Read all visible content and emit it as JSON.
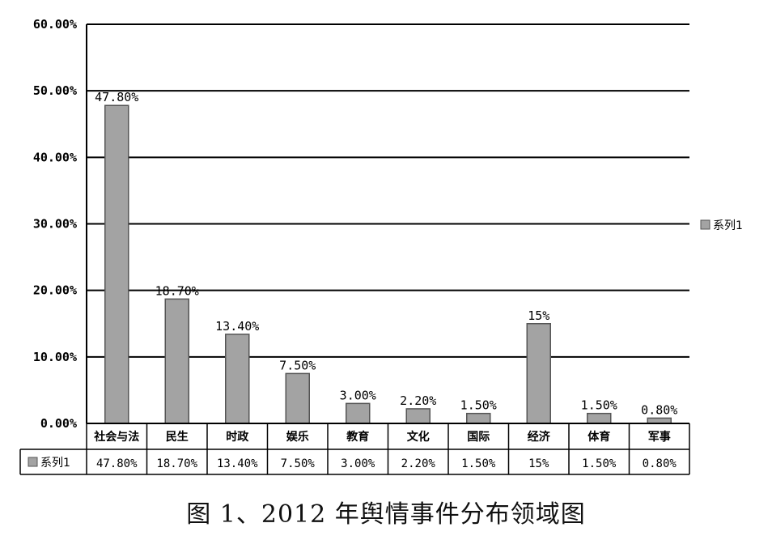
{
  "chart_data": {
    "type": "bar",
    "categories": [
      "社会与法",
      "民生",
      "时政",
      "娱乐",
      "教育",
      "文化",
      "国际",
      "经济",
      "体育",
      "军事"
    ],
    "series": [
      {
        "name": "系列1",
        "values": [
          47.8,
          18.7,
          13.4,
          7.5,
          3.0,
          2.2,
          1.5,
          15,
          1.5,
          0.8
        ]
      }
    ],
    "data_labels": [
      "47.80%",
      "18.70%",
      "13.40%",
      "7.50%",
      "3.00%",
      "2.20%",
      "1.50%",
      "15%",
      "1.50%",
      "0.80%"
    ],
    "table_values": [
      "47.80%",
      "18.70%",
      "13.40%",
      "7.50%",
      "3.00%",
      "2.20%",
      "1.50%",
      "15%",
      "1.50%",
      "0.80%"
    ],
    "y_ticks": [
      "0.00%",
      "10.00%",
      "20.00%",
      "30.00%",
      "40.00%",
      "50.00%",
      "60.00%"
    ],
    "ylim": [
      0,
      60
    ],
    "ylabel": "",
    "xlabel": "",
    "grid": true,
    "legend": {
      "position": "right",
      "label": "系列1"
    },
    "colors": {
      "bar": "#a3a3a3",
      "bar_edge": "#555555",
      "grid": "#000000"
    }
  },
  "caption": "图 1、2012 年舆情事件分布领域图"
}
